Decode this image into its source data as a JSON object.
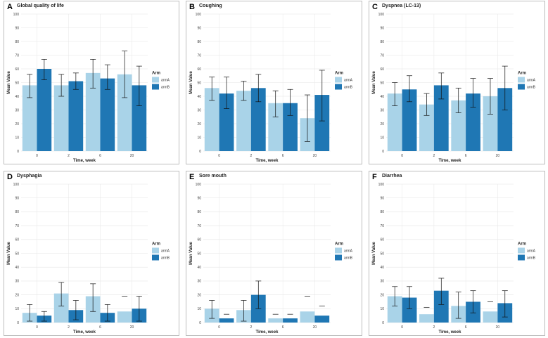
{
  "colors": {
    "armA": "#a9d3e8",
    "armB": "#1f77b4",
    "grid": "#e6e6e6",
    "error": "#111111"
  },
  "chart_data": [
    {
      "letter": "A",
      "title": "Global quality of life",
      "type": "bar",
      "categories": [
        "0",
        "2",
        "6",
        "20"
      ],
      "xlabel": "Time, week",
      "ylabel": "Mean Value",
      "ylim": [
        0,
        100
      ],
      "yticks": [
        0,
        10,
        20,
        30,
        40,
        50,
        60,
        70,
        80,
        90,
        100
      ],
      "legend_title": "Arm",
      "series": [
        {
          "name": "armA",
          "values": [
            48,
            48,
            57,
            56
          ],
          "err_low": [
            39,
            40,
            46,
            39
          ],
          "err_high": [
            56,
            56,
            67,
            73
          ]
        },
        {
          "name": "armB",
          "values": [
            60,
            51,
            53,
            48
          ],
          "err_low": [
            52,
            45,
            45,
            33
          ],
          "err_high": [
            67,
            57,
            63,
            62
          ]
        }
      ]
    },
    {
      "letter": "B",
      "title": "Coughing",
      "type": "bar",
      "categories": [
        "0",
        "2",
        "6",
        "20"
      ],
      "xlabel": "Time, week",
      "ylabel": "Mean Value",
      "ylim": [
        0,
        100
      ],
      "yticks": [
        0,
        10,
        20,
        30,
        40,
        50,
        60,
        70,
        80,
        90,
        100
      ],
      "legend_title": "Arm",
      "series": [
        {
          "name": "armA",
          "values": [
            46,
            44,
            35,
            24
          ],
          "err_low": [
            37,
            37,
            25,
            7
          ],
          "err_high": [
            54,
            51,
            44,
            41
          ]
        },
        {
          "name": "armB",
          "values": [
            42,
            46,
            35,
            41
          ],
          "err_low": [
            31,
            36,
            26,
            22
          ],
          "err_high": [
            54,
            56,
            45,
            59
          ]
        }
      ]
    },
    {
      "letter": "C",
      "title": "Dyspnea (LC-13)",
      "type": "bar",
      "categories": [
        "0",
        "2",
        "6",
        "20"
      ],
      "xlabel": "Time, week",
      "ylabel": "Mean Value",
      "ylim": [
        0,
        100
      ],
      "yticks": [
        0,
        10,
        20,
        30,
        40,
        50,
        60,
        70,
        80,
        90,
        100
      ],
      "legend_title": "Arm",
      "series": [
        {
          "name": "armA",
          "values": [
            42,
            34,
            37,
            40
          ],
          "err_low": [
            33,
            26,
            28,
            27
          ],
          "err_high": [
            50,
            42,
            46,
            53
          ]
        },
        {
          "name": "armB",
          "values": [
            45,
            48,
            42,
            46
          ],
          "err_low": [
            36,
            38,
            32,
            30
          ],
          "err_high": [
            55,
            57,
            53,
            62
          ]
        }
      ]
    },
    {
      "letter": "D",
      "title": "Dysphagia",
      "type": "bar",
      "categories": [
        "0",
        "2",
        "6",
        "20"
      ],
      "xlabel": "Time, week",
      "ylabel": "Mean Value",
      "ylim": [
        0,
        100
      ],
      "yticks": [
        0,
        10,
        20,
        30,
        40,
        50,
        60,
        70,
        80,
        90,
        100
      ],
      "legend_title": "Arm",
      "series": [
        {
          "name": "armA",
          "values": [
            7,
            21,
            19,
            8
          ],
          "err_low": [
            1,
            12,
            8,
            null
          ],
          "err_high": [
            13,
            29,
            28,
            19
          ]
        },
        {
          "name": "armB",
          "values": [
            5,
            9,
            7,
            10
          ],
          "err_low": [
            1,
            2,
            1,
            1
          ],
          "err_high": [
            8,
            16,
            13,
            19
          ]
        }
      ]
    },
    {
      "letter": "E",
      "title": "Sore mouth",
      "type": "bar",
      "categories": [
        "0",
        "2",
        "6",
        "20"
      ],
      "xlabel": "Time, week",
      "ylabel": "Mean Value",
      "ylim": [
        0,
        100
      ],
      "yticks": [
        0,
        10,
        20,
        30,
        40,
        50,
        60,
        70,
        80,
        90,
        100
      ],
      "legend_title": "Arm",
      "series": [
        {
          "name": "armA",
          "values": [
            10,
            9,
            3,
            8
          ],
          "err_low": [
            3,
            1,
            null,
            null
          ],
          "err_high": [
            16,
            16,
            6,
            19
          ]
        },
        {
          "name": "armB",
          "values": [
            3,
            20,
            3,
            5
          ],
          "err_low": [
            null,
            10,
            null,
            null
          ],
          "err_high": [
            6,
            30,
            6,
            12
          ]
        }
      ]
    },
    {
      "letter": "F",
      "title": "Diarrhea",
      "type": "bar",
      "categories": [
        "0",
        "2",
        "6",
        "20"
      ],
      "xlabel": "Time, week",
      "ylabel": "Mean Value",
      "ylim": [
        0,
        100
      ],
      "yticks": [
        0,
        10,
        20,
        30,
        40,
        50,
        60,
        70,
        80,
        90,
        100
      ],
      "legend_title": "Arm",
      "series": [
        {
          "name": "armA",
          "values": [
            19,
            6,
            12,
            8
          ],
          "err_low": [
            12,
            null,
            3,
            null
          ],
          "err_high": [
            26,
            11,
            22,
            15
          ]
        },
        {
          "name": "armB",
          "values": [
            18,
            23,
            15,
            14
          ],
          "err_low": [
            10,
            13,
            7,
            4
          ],
          "err_high": [
            26,
            32,
            23,
            23
          ]
        }
      ]
    }
  ]
}
